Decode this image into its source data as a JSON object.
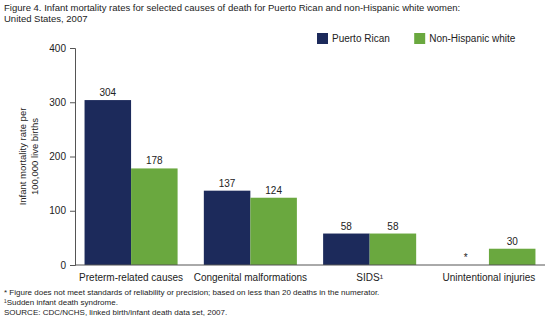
{
  "chart_data": {
    "type": "bar",
    "title": [
      "Figure 4. Infant mortality rates for selected causes of death for Puerto Rican and non-Hispanic white women:",
      "United States, 2007"
    ],
    "y_label": [
      "Infant mortality rate per",
      "100,000 live births"
    ],
    "categories": [
      "Preterm-related causes",
      "Congenital malformations",
      "SIDS¹",
      "Unintentional injuries"
    ],
    "series": [
      {
        "name": "Puerto Rican",
        "color": "#1c2a5b",
        "values": [
          304,
          137,
          58,
          null
        ],
        "value_labels": [
          "304",
          "137",
          "58",
          "*"
        ]
      },
      {
        "name": "Non-Hispanic white",
        "color": "#6aa83f",
        "values": [
          178,
          124,
          58,
          30
        ]
      }
    ],
    "ylim": [
      0,
      400
    ],
    "yticks": [
      0,
      100,
      200,
      300,
      400
    ],
    "grid": false,
    "legend": "top-right",
    "data_labels": true,
    "annotations": [
      "* Figure does not meet standards of reliability or precision; based on less than 20 deaths in the numerator.",
      "¹Sudden infant death syndrome.",
      "SOURCE: CDC/NCHS, linked birth/infant death data set, 2007."
    ]
  }
}
